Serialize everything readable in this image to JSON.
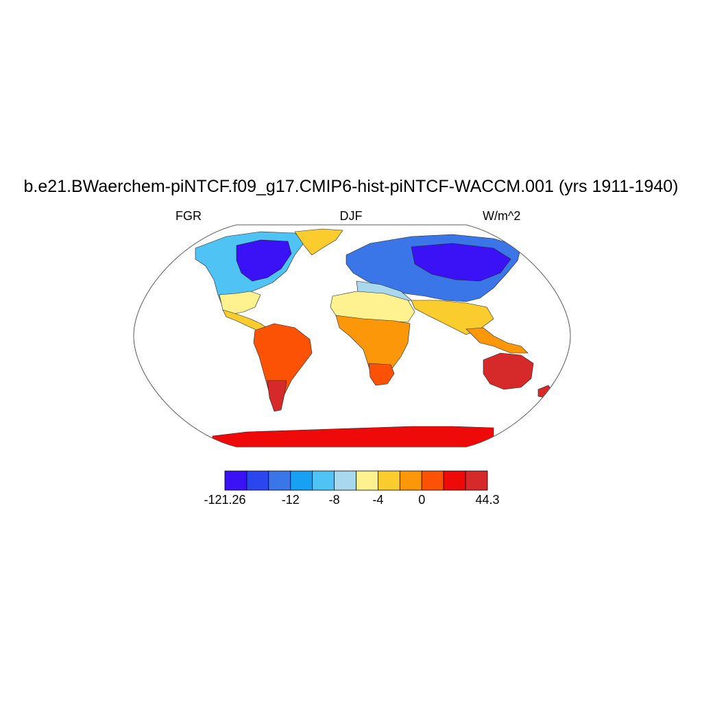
{
  "title": "b.e21.BWaerchem-piNTCF.f09_g17.CMIP6-hist-piNTCF-WACCM.001 (yrs 1911-1940)",
  "subtitle_left": "FGR",
  "subtitle_center": "DJF",
  "subtitle_right": "W/m^2",
  "colorbar": {
    "colors": [
      "#3b12f5",
      "#2a46ee",
      "#3a76e8",
      "#18a0f3",
      "#4fc3f3",
      "#a8d8ee",
      "#fdf28f",
      "#fbcc2e",
      "#fb9708",
      "#fb5206",
      "#ef0a0a",
      "#d62a2a"
    ],
    "labels": [
      {
        "text": "-121.26",
        "index": 0
      },
      {
        "text": "-12",
        "index": 3
      },
      {
        "text": "-8",
        "index": 5
      },
      {
        "text": "-4",
        "index": 7
      },
      {
        "text": "0",
        "index": 9
      },
      {
        "text": "44.3",
        "index": 12
      }
    ]
  },
  "map": {
    "projection": "Robinson",
    "region_colors": {
      "arctic_cold": "#3b12f5",
      "cold": "#2a46ee",
      "cool": "#3a76e8",
      "mid_cool": "#18a0f3",
      "light_blue": "#4fc3f3",
      "pale_blue": "#a8d8ee",
      "pale_yellow": "#fdf28f",
      "yellow": "#fbcc2e",
      "orange": "#fb9708",
      "dark_orange": "#fb5206",
      "red": "#ef0a0a",
      "dark_red": "#d62a2a"
    }
  }
}
